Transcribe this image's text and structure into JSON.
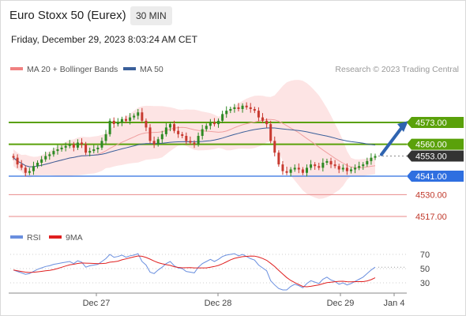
{
  "header": {
    "title": "Euro Stoxx 50 (Eurex)",
    "interval": "30 MIN",
    "datetime": "Friday, December 29, 2023 8:03:24 AM CET"
  },
  "copyright": "Research © 2023 Trading Central",
  "colors": {
    "bollinger": "#f08080",
    "ma50": "#3a5f9a",
    "resistance": "#5aa10a",
    "support": "#2f6fe0",
    "support_secondary": "#e88a8a",
    "current": "#333333",
    "arrow": "#2f64b0",
    "candle_up": "#2e8a23",
    "candle_down": "#c83a30",
    "rsi": "#6a8fdf",
    "rsi_ma": "#e02020"
  },
  "chart_data": [
    {
      "type": "candlestick",
      "legend": [
        "MA 20 + Bollinger Bands",
        "MA 50"
      ],
      "x_ticks": [
        "Dec 27",
        "Dec 28",
        "Dec 29",
        "Jan 4"
      ],
      "ylim": [
        4514,
        4599
      ],
      "current_price": 4553.0,
      "levels": [
        {
          "value": 4573.0,
          "label": "4573.00",
          "kind": "resistance"
        },
        {
          "value": 4560.0,
          "label": "4560.00",
          "kind": "resistance"
        },
        {
          "value": 4553.0,
          "label": "4553.00",
          "kind": "current"
        },
        {
          "value": 4541.0,
          "label": "4541.00",
          "kind": "support"
        },
        {
          "value": 4530.0,
          "label": "4530.00",
          "kind": "support_secondary"
        },
        {
          "value": 4517.0,
          "label": "4517.00",
          "kind": "support_secondary"
        }
      ],
      "projection": {
        "from": 4553.0,
        "to": 4573.0
      },
      "closes": [
        4552,
        4548,
        4546,
        4543,
        4544,
        4547,
        4549,
        4551,
        4553,
        4554,
        4556,
        4557,
        4558,
        4559,
        4560,
        4558,
        4561,
        4560,
        4555,
        4556,
        4557,
        4558,
        4562,
        4566,
        4574,
        4572,
        4573,
        4575,
        4574,
        4576,
        4577,
        4579,
        4574,
        4570,
        4562,
        4560,
        4563,
        4566,
        4570,
        4572,
        4568,
        4566,
        4565,
        4562,
        4561,
        4560,
        4565,
        4569,
        4571,
        4573,
        4572,
        4574,
        4578,
        4580,
        4581,
        4582,
        4581,
        4583,
        4582,
        4581,
        4580,
        4576,
        4574,
        4572,
        4562,
        4555,
        4548,
        4544,
        4543,
        4545,
        4546,
        4545,
        4543,
        4546,
        4548,
        4547,
        4546,
        4549,
        4550,
        4548,
        4547,
        4545,
        4546,
        4544,
        4545,
        4546,
        4547,
        4548,
        4550,
        4552,
        4553
      ]
    },
    {
      "type": "line",
      "title": "RSI",
      "legend": [
        "RSI",
        "9MA"
      ],
      "ylim": [
        20,
        80
      ],
      "y_ticks": [
        70,
        50,
        30
      ],
      "rsi": [
        48,
        46,
        44,
        42,
        43,
        46,
        49,
        51,
        53,
        54,
        56,
        57,
        58,
        59,
        60,
        57,
        61,
        59,
        52,
        54,
        55,
        56,
        60,
        64,
        70,
        66,
        67,
        69,
        66,
        68,
        69,
        71,
        60,
        55,
        45,
        43,
        48,
        52,
        57,
        60,
        54,
        51,
        50,
        46,
        45,
        44,
        52,
        57,
        60,
        63,
        60,
        63,
        67,
        69,
        70,
        71,
        68,
        70,
        67,
        64,
        62,
        55,
        51,
        47,
        33,
        27,
        22,
        20,
        20,
        25,
        28,
        26,
        23,
        29,
        33,
        31,
        29,
        35,
        38,
        34,
        32,
        28,
        30,
        27,
        29,
        32,
        35,
        38,
        43,
        48,
        52
      ]
    }
  ]
}
